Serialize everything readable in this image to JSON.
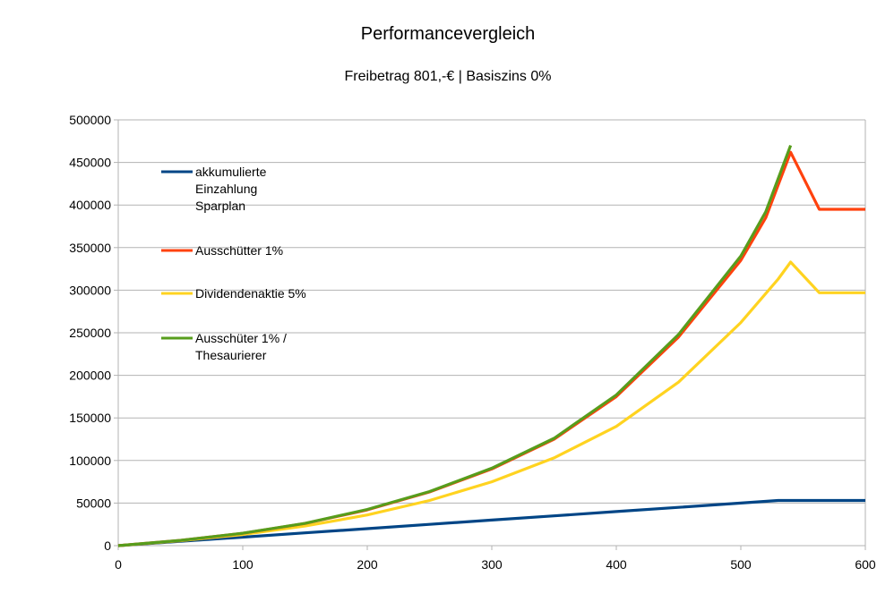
{
  "chart_data": {
    "type": "line",
    "title": "Performancevergleich",
    "subtitle": "Freibetrag 801,-€ | Basiszins 0%",
    "xlabel": "",
    "ylabel": "",
    "xlim": [
      0,
      600
    ],
    "ylim": [
      0,
      500000
    ],
    "x_ticks": [
      0,
      100,
      200,
      300,
      400,
      500,
      600
    ],
    "y_ticks": [
      0,
      50000,
      100000,
      150000,
      200000,
      250000,
      300000,
      350000,
      400000,
      450000,
      500000
    ],
    "grid": true,
    "legend_position": "top-left",
    "series": [
      {
        "name": "akkumulierte Einzahlung Sparplan",
        "legend_lines": [
          "akkumulierte",
          "Einzahlung",
          "Sparplan"
        ],
        "color": "#004586",
        "points": [
          [
            0,
            0
          ],
          [
            50,
            5000
          ],
          [
            100,
            10000
          ],
          [
            150,
            15000
          ],
          [
            200,
            20000
          ],
          [
            250,
            25000
          ],
          [
            300,
            30000
          ],
          [
            350,
            35000
          ],
          [
            400,
            40000
          ],
          [
            450,
            45000
          ],
          [
            500,
            50000
          ],
          [
            530,
            53000
          ],
          [
            540,
            53000
          ],
          [
            600,
            53000
          ]
        ]
      },
      {
        "name": "Ausschütter 1%",
        "legend_lines": [
          "Ausschütter 1%"
        ],
        "color": "#ff420e",
        "points": [
          [
            0,
            0
          ],
          [
            50,
            6200
          ],
          [
            100,
            14500
          ],
          [
            150,
            26000
          ],
          [
            200,
            42000
          ],
          [
            250,
            63000
          ],
          [
            300,
            90000
          ],
          [
            350,
            125000
          ],
          [
            400,
            175000
          ],
          [
            450,
            245000
          ],
          [
            500,
            335000
          ],
          [
            520,
            385000
          ],
          [
            540,
            462000
          ],
          [
            563,
            395000
          ],
          [
            600,
            395000
          ]
        ]
      },
      {
        "name": "Dividendenaktie 5%",
        "legend_lines": [
          "Dividendenaktie 5%"
        ],
        "color": "#ffd320",
        "points": [
          [
            0,
            0
          ],
          [
            50,
            5800
          ],
          [
            100,
            13000
          ],
          [
            150,
            23000
          ],
          [
            200,
            36000
          ],
          [
            250,
            53000
          ],
          [
            300,
            75000
          ],
          [
            350,
            103000
          ],
          [
            400,
            140000
          ],
          [
            450,
            192000
          ],
          [
            500,
            262000
          ],
          [
            530,
            313000
          ],
          [
            540,
            333000
          ],
          [
            563,
            297000
          ],
          [
            600,
            297000
          ]
        ]
      },
      {
        "name": "Ausschüter 1% / Thesaurierer",
        "legend_lines": [
          "Ausschüter 1% /",
          "Thesaurierer"
        ],
        "color": "#579d1c",
        "points": [
          [
            0,
            0
          ],
          [
            50,
            6200
          ],
          [
            100,
            14600
          ],
          [
            150,
            26200
          ],
          [
            200,
            42500
          ],
          [
            250,
            63500
          ],
          [
            300,
            91000
          ],
          [
            350,
            126000
          ],
          [
            400,
            177000
          ],
          [
            450,
            248000
          ],
          [
            500,
            340000
          ],
          [
            520,
            392000
          ],
          [
            540,
            470000
          ]
        ]
      }
    ]
  }
}
